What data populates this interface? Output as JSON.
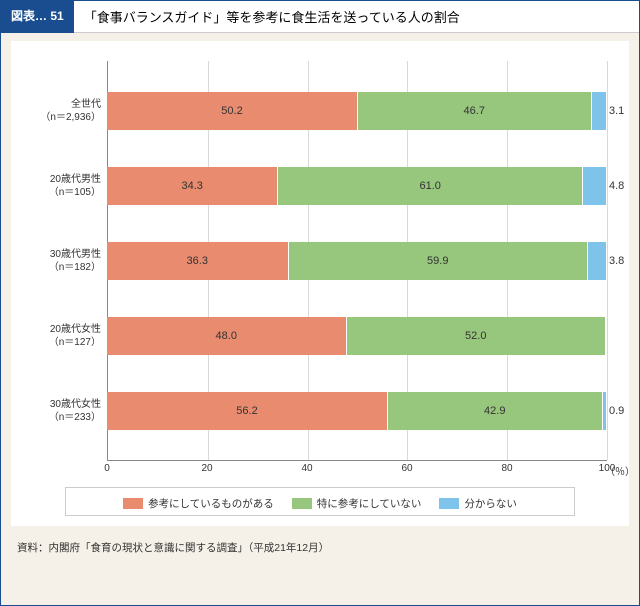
{
  "header": {
    "badge": "図表… 51",
    "title": "「食事バランスガイド」等を参考に食生活を送っている人の割合"
  },
  "chart": {
    "type": "stacked-bar-horizontal",
    "xlim": [
      0,
      100
    ],
    "xtick_step": 20,
    "xticks": [
      0,
      20,
      40,
      60,
      80,
      100
    ],
    "xunit": "（％）",
    "background_color": "#ffffff",
    "grid_color": "#d8d8d8",
    "axis_color": "#888888",
    "series": [
      {
        "key": "ref",
        "label": "参考にしているものがある",
        "color": "#e88b6f"
      },
      {
        "key": "noref",
        "label": "特に参考にしていない",
        "color": "#97c67d"
      },
      {
        "key": "unknown",
        "label": "分からない",
        "color": "#7ec3ea"
      }
    ],
    "categories": [
      {
        "label1": "全世代",
        "label2": "（n＝2,936）",
        "values": [
          50.2,
          46.7,
          3.1
        ],
        "show_in": [
          true,
          true,
          false
        ],
        "outside_idx": 2
      },
      {
        "label1": "20歳代男性",
        "label2": "（n＝105）",
        "values": [
          34.3,
          61.0,
          4.8
        ],
        "show_in": [
          true,
          true,
          false
        ],
        "outside_idx": 2
      },
      {
        "label1": "30歳代男性",
        "label2": "（n＝182）",
        "values": [
          36.3,
          59.9,
          3.8
        ],
        "show_in": [
          true,
          true,
          false
        ],
        "outside_idx": 2
      },
      {
        "label1": "20歳代女性",
        "label2": "（n＝127）",
        "values": [
          48.0,
          52.0,
          0.0
        ],
        "show_in": [
          true,
          true,
          false
        ],
        "outside_idx": null
      },
      {
        "label1": "30歳代女性",
        "label2": "（n＝233）",
        "values": [
          56.2,
          42.9,
          0.9
        ],
        "show_in": [
          true,
          true,
          false
        ],
        "outside_idx": 2
      }
    ],
    "label_fontsize": 10,
    "value_fontsize": 11
  },
  "source": "資料：内閣府「食育の現状と意識に関する調査」（平成21年12月）"
}
